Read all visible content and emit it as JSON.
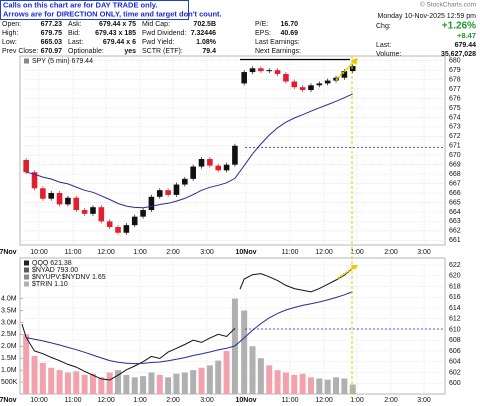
{
  "notice": [
    "Calls on this chart are for DAY TRADE only.",
    "Arrows are for DIRECTION ONLY, time and target don't count."
  ],
  "copyright": "© StockCharts.com",
  "quote": {
    "grid": [
      [
        [
          "Open:",
          "677.23"
        ],
        [
          "Ask:",
          "679.44 x 75"
        ],
        [
          "Mid Cap:",
          "702.5B"
        ],
        [
          "P/E:",
          "16.70"
        ]
      ],
      [
        [
          "High:",
          "679.75"
        ],
        [
          "Bid:",
          "679.43 x 185"
        ],
        [
          "Fwd Dividend:",
          "7.32446"
        ],
        [
          "EPS:",
          "40.69"
        ]
      ],
      [
        [
          "Low:",
          "665.03"
        ],
        [
          "Last:",
          "679.44 x 6"
        ],
        [
          "Fwd Yield:",
          "1.08%"
        ],
        [
          "Last Earnings:"
        ]
      ],
      [
        [
          "Prev Close:",
          "670.97"
        ],
        [
          "Optionable:",
          "yes"
        ],
        [
          "SCTR (ETF):",
          "79.4"
        ],
        [
          "Next Earnings:"
        ]
      ]
    ],
    "date": "Monday 10-Nov-2025 12:59 pm",
    "chg_label": "Chg:",
    "chg_pct": "+1.26%",
    "chg": "+8.47",
    "last": [
      "Last:",
      "679.44"
    ],
    "volume": [
      "Volume:",
      "35,627,028"
    ]
  },
  "chart_data": [
    {
      "type": "candlestick",
      "title": "SPY (5 min) 679.44",
      "days": [
        {
          "open": 669.5,
          "closes": [
            668.2,
            666.5,
            665.4,
            666.0,
            664.8,
            665.5,
            664.2,
            663.8,
            664.5,
            663.0,
            662.4,
            661.8,
            662.6,
            663.5,
            664.2,
            665.6,
            666.3,
            665.8,
            666.9,
            667.5,
            668.8,
            669.6,
            668.9,
            668.4,
            669.0,
            671.0
          ]
        },
        {
          "open": 677.6,
          "closes": [
            678.8,
            679.2,
            678.9,
            679.0,
            678.6,
            677.8,
            677.2,
            676.9,
            677.4,
            677.6,
            677.9,
            678.2,
            678.9,
            679.44
          ]
        }
      ],
      "ylim": [
        660.5,
        680.5
      ],
      "yticks": [
        661,
        662,
        663,
        664,
        665,
        666,
        667,
        668,
        669,
        670,
        671,
        672,
        673,
        674,
        675,
        676,
        677,
        678,
        679,
        680
      ],
      "xticks": [
        "7Nov",
        "10:00",
        "11:00",
        "12:00",
        "1:00",
        "2:00",
        "3:00",
        "10Nov",
        "11:00",
        "12:00",
        "1:00",
        "2:00",
        "3:00"
      ],
      "colors": {
        "up": "#111111",
        "down": "#e02030",
        "average": "#2a2a9a"
      }
    },
    {
      "type": "line-volume",
      "legend": [
        "QQQ 621.38",
        "$NYAD 793.00",
        "$NYUPV:$NYDNV 1.65",
        "$TRIN 1.10"
      ],
      "days": [
        {
          "open": 611.0,
          "closes": [
            608.5,
            606.0,
            605.5,
            604.8,
            604.2,
            603.5,
            603.0,
            602.2,
            601.5,
            600.8,
            600.6,
            601.5,
            602.5,
            603.2,
            604.0,
            605.0,
            604.6,
            605.8,
            606.5,
            607.2,
            608.0,
            607.6,
            608.4,
            609.1,
            608.7,
            610.2
          ],
          "volumes": [
            2500000,
            1600000,
            1300000,
            1100000,
            1000000,
            900000,
            950000,
            800000,
            850000,
            700000,
            900000,
            1000000,
            800000,
            700000,
            750000,
            900000,
            800000,
            700000,
            850000,
            900000,
            1000000,
            1100000,
            1200000,
            1400000,
            1800000,
            4000000
          ]
        },
        {
          "open": 617.5,
          "closes": [
            619.4,
            620.2,
            620.4,
            619.8,
            619.1,
            618.2,
            617.6,
            617.3,
            617.0,
            617.6,
            618.4,
            619.2,
            620.1,
            621.38
          ],
          "volumes": [
            3500000,
            2000000,
            1500000,
            1200000,
            1000000,
            900000,
            800000,
            850000,
            700000,
            650000,
            600000,
            700000,
            650000,
            400000
          ]
        }
      ],
      "ylim": [
        598,
        623.3
      ],
      "yticks": [
        600,
        602,
        604,
        606,
        608,
        610,
        612,
        614,
        616,
        618,
        620,
        622
      ],
      "y2lim": [
        0,
        5700000
      ],
      "y2ticks": [
        {
          "value": 500000,
          "label": "500K"
        },
        {
          "value": 1000000,
          "label": "1.0M"
        },
        {
          "value": 1500000,
          "label": "1.5M"
        },
        {
          "value": 2000000,
          "label": "2.0M"
        },
        {
          "value": 2500000,
          "label": "2.5M"
        },
        {
          "value": 3000000,
          "label": "3.0M"
        },
        {
          "value": 3500000,
          "label": "3.5M"
        },
        {
          "value": 4000000,
          "label": "4.0M"
        }
      ],
      "xticks": [
        "7Nov",
        "10:00",
        "11:00",
        "12:00",
        "1:00",
        "2:00",
        "3:00",
        "10Nov",
        "11:00",
        "12:00",
        "1:00",
        "2:00",
        "3:00"
      ],
      "colors": {
        "line": "#111111",
        "average": "#2a2a9a",
        "vol_up": "#b0b0b0",
        "vol_down": "#f2a2ac"
      }
    }
  ]
}
